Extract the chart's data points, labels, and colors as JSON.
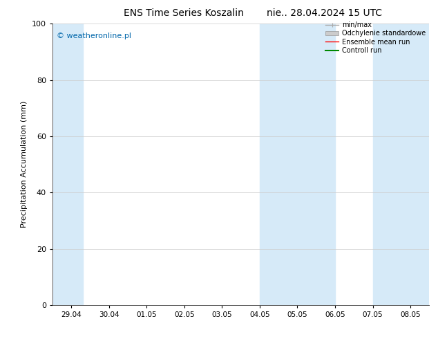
{
  "title": "ENS Time Series Koszalin",
  "title2": "nie.. 28.04.2024 15 UTC",
  "ylabel": "Precipitation Accumulation (mm)",
  "ylim": [
    0,
    100
  ],
  "yticks": [
    0,
    20,
    40,
    60,
    80,
    100
  ],
  "xtick_labels": [
    "29.04",
    "30.04",
    "01.05",
    "02.05",
    "03.05",
    "04.05",
    "05.05",
    "06.05",
    "07.05",
    "08.05"
  ],
  "watermark": "© weatheronline.pl",
  "watermark_color": "#0066aa",
  "background_color": "#ffffff",
  "plot_bg_color": "#ffffff",
  "band_color": "#d6eaf8",
  "legend_items": [
    {
      "label": "min/max",
      "color": "#aaaaaa",
      "lw": 1.0
    },
    {
      "label": "Odchylenie standardowe",
      "color": "#cccccc",
      "lw": 5
    },
    {
      "label": "Ensemble mean run",
      "color": "#ff0000",
      "lw": 1.0
    },
    {
      "label": "Controll run",
      "color": "#008800",
      "lw": 1.5
    }
  ],
  "fig_width": 6.34,
  "fig_height": 4.9,
  "dpi": 100
}
